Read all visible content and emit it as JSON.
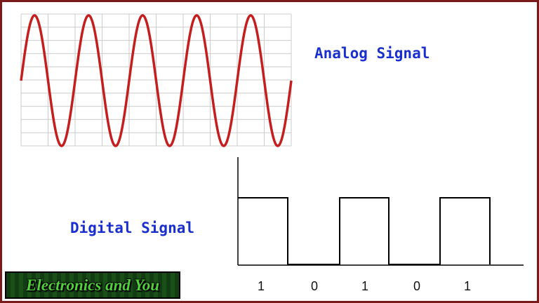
{
  "analog": {
    "label": "Analog Signal",
    "cycles": 5,
    "wave_color": "#c41e1e",
    "grid_color": "#cccccc"
  },
  "digital": {
    "label": "Digital Signal",
    "bits": [
      "1",
      "0",
      "1",
      "0",
      "1"
    ],
    "line_color": "#000000"
  },
  "label_color": "#1a2fd0",
  "logo": {
    "text": "Electronics and You",
    "text_color": "#4fd13a",
    "bg_color": "#154a14"
  },
  "frame_color": "#7a1a1a"
}
